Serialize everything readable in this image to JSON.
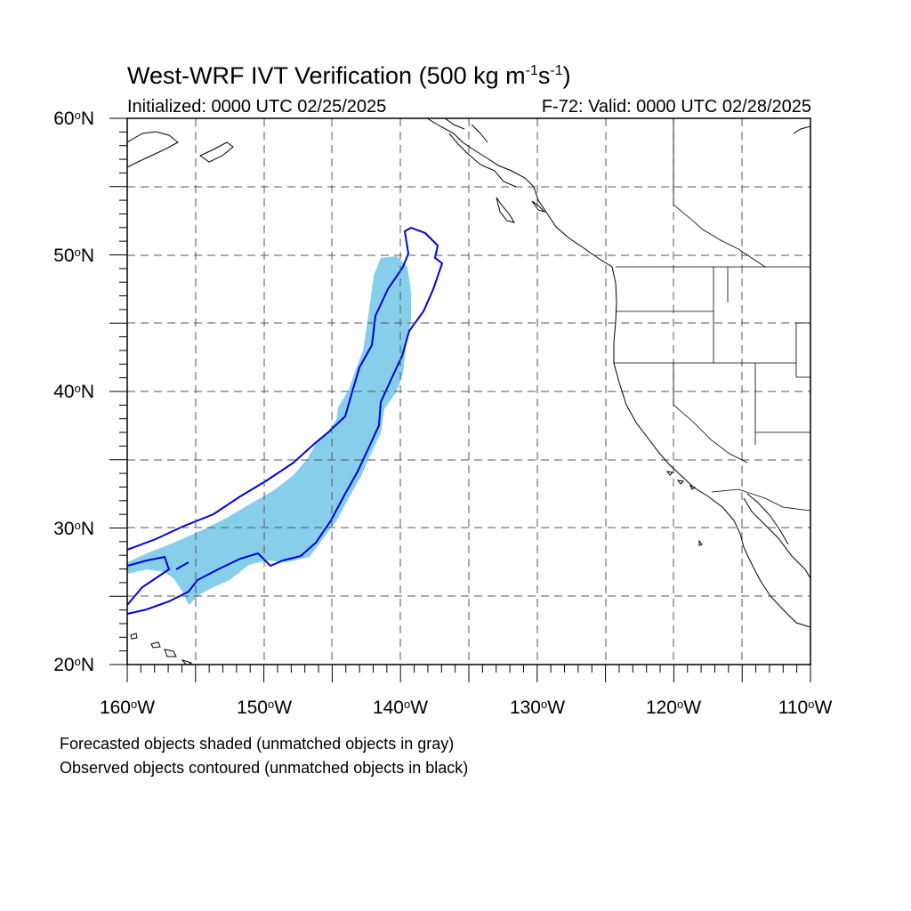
{
  "title": {
    "main": "West-WRF IVT Verification (500 kg m",
    "exp1": "-1",
    "mid": "s",
    "exp2": "-1",
    "close": ")"
  },
  "subtitle_left": "Initialized: 0000 UTC 02/25/2025",
  "subtitle_right": "F-72: Valid: 0000 UTC 02/28/2025",
  "map": {
    "lat_range": [
      20,
      60
    ],
    "lon_range": [
      -160,
      -110
    ],
    "lat_labels": [
      "60",
      "50",
      "40",
      "30",
      "20"
    ],
    "lat_suffix": "N",
    "lon_labels": [
      "160",
      "150",
      "140",
      "130",
      "120",
      "110"
    ],
    "lon_suffix": "W",
    "degree_symbol": "o",
    "colors": {
      "forecast_fill": "#87CEEB",
      "observed_contour": "#0000DD",
      "coastline": "#000000",
      "grid": "#555555"
    }
  },
  "legend": {
    "line1": "Forecasted objects shaded (unmatched objects in gray)",
    "line2": "Observed objects contoured (unmatched objects in black)"
  }
}
